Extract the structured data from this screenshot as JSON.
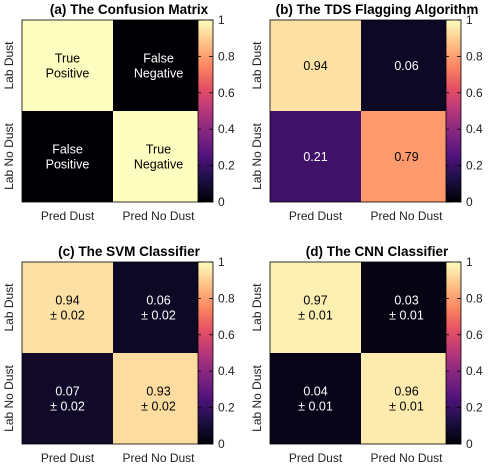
{
  "colors": {
    "black": "#000000",
    "white": "#ffffff",
    "axis": "#000000"
  },
  "colormap": [
    "#000004",
    "#1c1044",
    "#4f127b",
    "#812581",
    "#b5367a",
    "#e55064",
    "#fb8761",
    "#fec287",
    "#fcfdbf"
  ],
  "chart_data": [
    {
      "type": "heatmap",
      "title": "(a) The Confusion Matrix",
      "x_categories": [
        "Pred Dust",
        "Pred No Dust"
      ],
      "y_categories": [
        "Lab Dust",
        "Lab No Dust"
      ],
      "values": [
        [
          1,
          0
        ],
        [
          0,
          1
        ]
      ],
      "labels": [
        [
          "True\nPositive",
          "False\nNegative"
        ],
        [
          "False\nPositive",
          "True\nNegative"
        ]
      ],
      "colorbar": {
        "range": [
          0,
          1
        ],
        "ticks": [
          "0",
          "0.2",
          "0.4",
          "0.6",
          "0.8",
          "1"
        ]
      }
    },
    {
      "type": "heatmap",
      "title": "(b) The TDS Flagging Algorithm",
      "x_categories": [
        "Pred Dust",
        "Pred No Dust"
      ],
      "y_categories": [
        "Lab Dust",
        "Lab No Dust"
      ],
      "values": [
        [
          0.94,
          0.06
        ],
        [
          0.21,
          0.79
        ]
      ],
      "labels": [
        [
          "0.94",
          "0.06"
        ],
        [
          "0.21",
          "0.79"
        ]
      ],
      "colorbar": {
        "range": [
          0,
          1
        ],
        "ticks": [
          "0",
          "0.2",
          "0.4",
          "0.6",
          "0.8",
          "1"
        ]
      }
    },
    {
      "type": "heatmap",
      "title": "(c) The SVM Classifier",
      "x_categories": [
        "Pred Dust",
        "Pred No Dust"
      ],
      "y_categories": [
        "Lab Dust",
        "Lab No Dust"
      ],
      "values": [
        [
          0.94,
          0.06
        ],
        [
          0.07,
          0.93
        ]
      ],
      "labels": [
        [
          "0.94\n± 0.02",
          "0.06\n± 0.02"
        ],
        [
          "0.07\n± 0.02",
          "0.93\n± 0.02"
        ]
      ],
      "colorbar": {
        "range": [
          0,
          1
        ],
        "ticks": [
          "0",
          "0.2",
          "0.4",
          "0.6",
          "0.8",
          "1"
        ]
      }
    },
    {
      "type": "heatmap",
      "title": "(d) The CNN Classifier",
      "x_categories": [
        "Pred Dust",
        "Pred No Dust"
      ],
      "y_categories": [
        "Lab Dust",
        "Lab No Dust"
      ],
      "values": [
        [
          0.97,
          0.03
        ],
        [
          0.04,
          0.96
        ]
      ],
      "labels": [
        [
          "0.97\n± 0.01",
          "0.03\n± 0.01"
        ],
        [
          "0.04\n± 0.01",
          "0.96\n± 0.01"
        ]
      ],
      "colorbar": {
        "range": [
          0,
          1
        ],
        "ticks": [
          "0",
          "0.2",
          "0.4",
          "0.6",
          "0.8",
          "1"
        ]
      }
    }
  ]
}
